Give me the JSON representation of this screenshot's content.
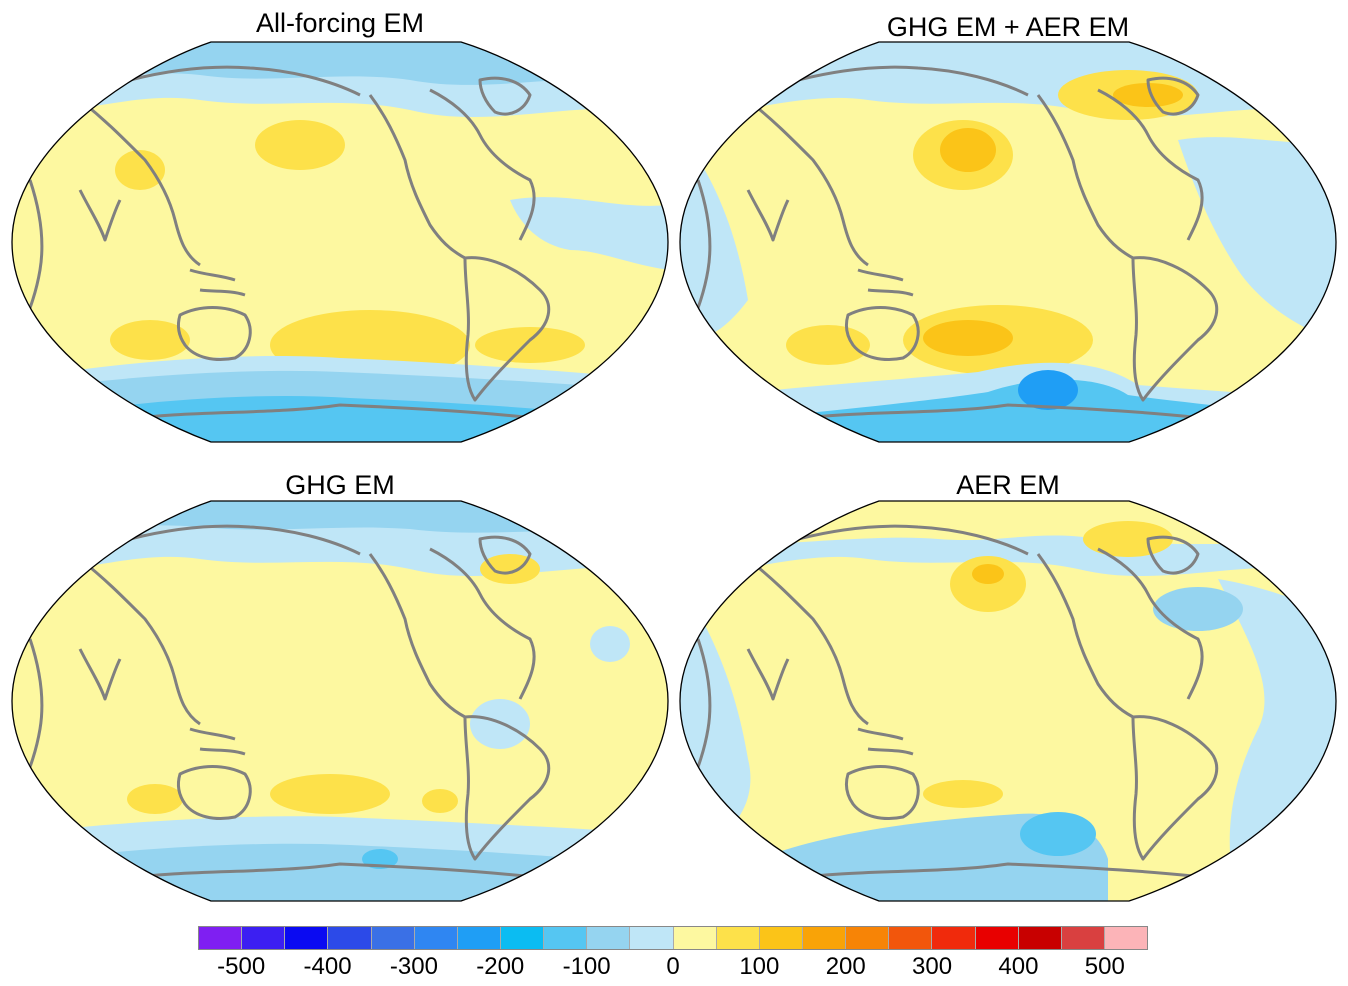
{
  "panels": [
    {
      "title": "All-forcing EM"
    },
    {
      "title": "GHG EM + AER EM"
    },
    {
      "title": "GHG EM"
    },
    {
      "title": "AER EM"
    }
  ],
  "colorbar": {
    "colors": [
      "#7f1ff2",
      "#3c1ff2",
      "#0a0af2",
      "#2c4ae8",
      "#3a70e6",
      "#2f86f2",
      "#1f9ef5",
      "#0bbcf2",
      "#55c6f2",
      "#95d4f0",
      "#bfe6f7",
      "#fdf8a0",
      "#fde14a",
      "#fbc418",
      "#f9a307",
      "#f78406",
      "#f2560c",
      "#f02a0c",
      "#e80000",
      "#c80000",
      "#d94040",
      "#fcb4b8"
    ],
    "tick_labels": [
      "-500",
      "-400",
      "-300",
      "-200",
      "-100",
      "0",
      "100",
      "200",
      "300",
      "400",
      "500"
    ],
    "tick_values": [
      -500,
      -400,
      -300,
      -200,
      -100,
      0,
      100,
      200,
      300,
      400,
      500
    ]
  },
  "map_colors": {
    "pale_blue": "#bfe6f7",
    "light_blue": "#95d4f0",
    "mid_blue": "#55c6f2",
    "blue": "#0bbcf2",
    "deep_blue": "#1f9ef5",
    "pale_yellow": "#fdf8a0",
    "yellow": "#fde14a",
    "orange_yellow": "#fbc418",
    "coastline": "#808080"
  }
}
